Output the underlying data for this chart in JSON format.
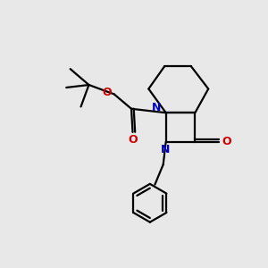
{
  "bg_color": "#e8e8e8",
  "bond_color": "#000000",
  "N_color": "#0000cc",
  "O_color": "#cc0000",
  "line_width": 1.6,
  "fig_size": [
    3.0,
    3.0
  ],
  "dpi": 100,
  "xlim": [
    0,
    10
  ],
  "ylim": [
    0,
    10
  ]
}
